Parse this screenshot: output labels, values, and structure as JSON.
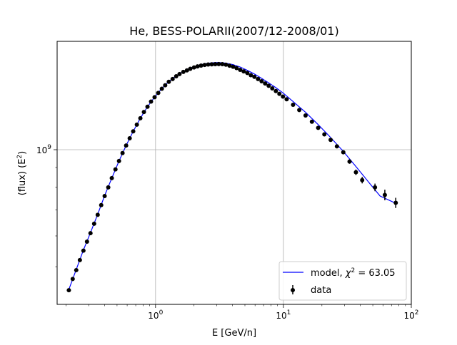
{
  "chart_data": {
    "type": "scatter",
    "title": "He, BESS-POLARII(2007/12-2008/01)",
    "xlabel": "E [GeV/n]",
    "ylabel": "(flux)  (E^2)",
    "ylabel_parts": {
      "prefix": "(flux)  (E",
      "sup": "2",
      "suffix": ")"
    },
    "xscale": "log",
    "yscale": "log",
    "xlim": [
      0.17,
      100
    ],
    "ylim": [
      400000000,
      1900000000
    ],
    "grid": true,
    "legend_position": "lower-right",
    "x_ticks": [
      {
        "value": 1,
        "base": "10",
        "exp": "0"
      },
      {
        "value": 10,
        "base": "10",
        "exp": "1"
      },
      {
        "value": 100,
        "base": "10",
        "exp": "2"
      }
    ],
    "y_ticks": [
      {
        "value": 1000000000,
        "base": "10",
        "exp": "9"
      }
    ],
    "series": [
      {
        "name": "data",
        "kind": "errorbar",
        "color": "#000000",
        "x": [
          0.21,
          0.225,
          0.24,
          0.256,
          0.273,
          0.291,
          0.31,
          0.331,
          0.353,
          0.376,
          0.4,
          0.427,
          0.455,
          0.486,
          0.518,
          0.552,
          0.589,
          0.628,
          0.669,
          0.714,
          0.761,
          0.811,
          0.865,
          0.922,
          0.983,
          1.05,
          1.12,
          1.19,
          1.27,
          1.36,
          1.45,
          1.54,
          1.65,
          1.76,
          1.87,
          2.0,
          2.13,
          2.27,
          2.42,
          2.58,
          2.75,
          2.93,
          3.12,
          3.33,
          3.55,
          3.79,
          4.04,
          4.3,
          4.59,
          4.89,
          5.22,
          5.56,
          5.93,
          6.33,
          6.75,
          7.2,
          7.67,
          8.18,
          8.73,
          9.3,
          9.92,
          10.6,
          11.9,
          13.3,
          14.9,
          16.7,
          18.7,
          20.9,
          23.4,
          26.2,
          29.4,
          32.9,
          36.9,
          41.3,
          52,
          62.1,
          75.6
        ],
        "y": [
          435000000,
          465000000,
          490000000,
          520000000,
          550000000,
          580000000,
          610000000,
          645000000,
          680000000,
          720000000,
          760000000,
          800000000,
          845000000,
          890000000,
          935000000,
          980000000,
          1025000000,
          1070000000,
          1115000000,
          1160000000,
          1205000000,
          1250000000,
          1290000000,
          1330000000,
          1365000000,
          1400000000,
          1435000000,
          1465000000,
          1495000000,
          1520000000,
          1545000000,
          1565000000,
          1585000000,
          1600000000,
          1615000000,
          1628000000,
          1638000000,
          1646000000,
          1652000000,
          1656000000,
          1658000000,
          1660000000,
          1661000000,
          1660000000,
          1655000000,
          1645000000,
          1635000000,
          1622000000,
          1605000000,
          1590000000,
          1575000000,
          1555000000,
          1540000000,
          1520000000,
          1500000000,
          1480000000,
          1460000000,
          1438000000,
          1415000000,
          1392000000,
          1370000000,
          1348000000,
          1305000000,
          1265000000,
          1225000000,
          1180000000,
          1138000000,
          1095000000,
          1060000000,
          1020000000,
          985000000,
          932000000,
          875000000,
          835000000,
          800000000,
          765000000,
          730000000
        ],
        "yerr": [
          0,
          0,
          0,
          0,
          0,
          0,
          0,
          0,
          0,
          0,
          0,
          0,
          0,
          0,
          0,
          0,
          0,
          0,
          0,
          0,
          0,
          0,
          0,
          0,
          0,
          0,
          0,
          0,
          0,
          0,
          0,
          0,
          0,
          0,
          0,
          0,
          0,
          0,
          0,
          0,
          0,
          0,
          0,
          0,
          0,
          0,
          0,
          0,
          0,
          0,
          0,
          0,
          0,
          0,
          0,
          0,
          0,
          0,
          0,
          0,
          0,
          0,
          0,
          0,
          0,
          0,
          0,
          0,
          0,
          0,
          0,
          12000000,
          14000000,
          16000000,
          18000000,
          24000000,
          22000000
        ]
      },
      {
        "name": "model, χ² = 63.05",
        "name_parts": {
          "prefix": "model, ",
          "chi": "χ",
          "sup": "2",
          "suffix": " = 63.05"
        },
        "kind": "line",
        "color": "#0000ff",
        "x": [
          0.21,
          0.24,
          0.273,
          0.31,
          0.353,
          0.4,
          0.455,
          0.518,
          0.589,
          0.669,
          0.761,
          0.865,
          0.983,
          1.12,
          1.27,
          1.45,
          1.65,
          1.87,
          2.13,
          2.42,
          2.75,
          3.12,
          3.55,
          4.04,
          4.59,
          5.22,
          5.93,
          6.75,
          7.67,
          8.73,
          9.92,
          11.9,
          14.9,
          18.7,
          23.4,
          29.4,
          36.9,
          46,
          57,
          75.6
        ],
        "y": [
          437000000,
          492000000,
          552000000,
          612000000,
          682000000,
          762000000,
          845000000,
          935000000,
          1025000000,
          1115000000,
          1205000000,
          1290000000,
          1365000000,
          1437000000,
          1497000000,
          1548000000,
          1590000000,
          1622000000,
          1645000000,
          1663000000,
          1673000000,
          1676000000,
          1670000000,
          1655000000,
          1632000000,
          1600000000,
          1566000000,
          1526000000,
          1486000000,
          1444000000,
          1400000000,
          1330000000,
          1248000000,
          1160000000,
          1075000000,
          990000000,
          905000000,
          828000000,
          760000000,
          728000000
        ]
      }
    ]
  }
}
